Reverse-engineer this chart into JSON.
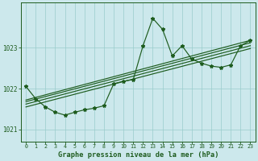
{
  "title": "Graphe pression niveau de la mer (hPa)",
  "background_color": "#cce8ec",
  "grid_color": "#99cccc",
  "line_color": "#1e5c1e",
  "xlim": [
    -0.5,
    23.5
  ],
  "ylim": [
    1020.7,
    1024.1
  ],
  "yticks": [
    1021,
    1022,
    1023
  ],
  "xticks": [
    0,
    1,
    2,
    3,
    4,
    5,
    6,
    7,
    8,
    9,
    10,
    11,
    12,
    13,
    14,
    15,
    16,
    17,
    18,
    19,
    20,
    21,
    22,
    23
  ],
  "hours": [
    0,
    1,
    2,
    3,
    4,
    5,
    6,
    7,
    8,
    9,
    10,
    11,
    12,
    13,
    14,
    15,
    16,
    17,
    18,
    19,
    20,
    21,
    22,
    23
  ],
  "main_series": [
    1022.05,
    1021.75,
    1021.55,
    1021.42,
    1021.35,
    1021.42,
    1021.48,
    1021.52,
    1021.58,
    1022.12,
    1022.18,
    1022.22,
    1023.05,
    1023.72,
    1023.45,
    1022.8,
    1023.05,
    1022.72,
    1022.62,
    1022.55,
    1022.52,
    1022.58,
    1023.05,
    1023.18
  ],
  "trend1_x": [
    0,
    23
  ],
  "trend1_y": [
    1021.62,
    1023.05
  ],
  "trend2_x": [
    0,
    23
  ],
  "trend2_y": [
    1021.68,
    1023.12
  ],
  "trend3_x": [
    0,
    23
  ],
  "trend3_y": [
    1021.72,
    1023.18
  ],
  "trend4_x": [
    0,
    23
  ],
  "trend4_y": [
    1021.55,
    1022.98
  ]
}
